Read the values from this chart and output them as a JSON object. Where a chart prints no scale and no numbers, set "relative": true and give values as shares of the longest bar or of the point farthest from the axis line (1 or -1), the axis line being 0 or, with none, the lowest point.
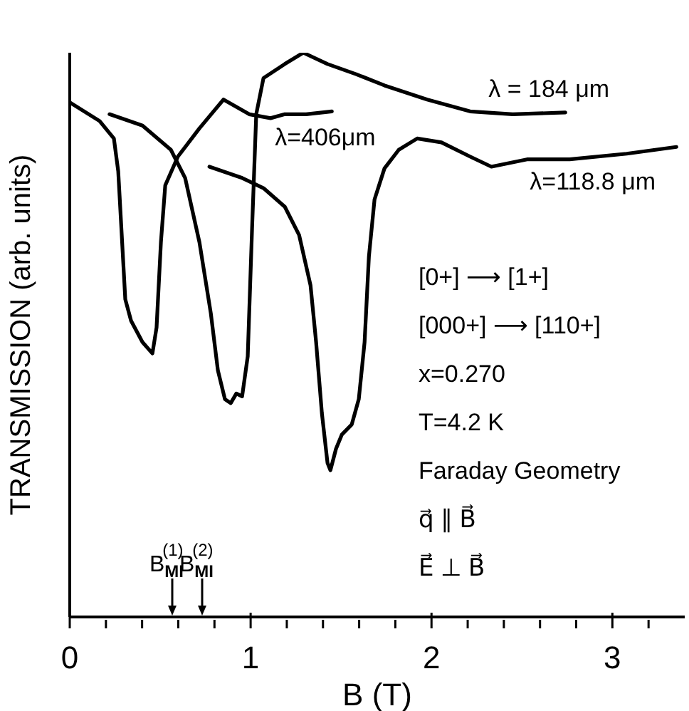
{
  "chart_data": {
    "type": "line",
    "relative": true,
    "xlabel": "B (T)",
    "ylabel": "TRANSMISSION  (arb. units)",
    "xlim": [
      0,
      3.4
    ],
    "xticks": [
      0,
      {
        "value": 0.2,
        "label": null
      },
      {
        "value": 0.4,
        "label": null
      },
      {
        "value": 0.6,
        "label": null
      },
      {
        "value": 0.8,
        "label": null
      },
      1,
      {
        "value": 1.2,
        "label": null
      },
      {
        "value": 1.4,
        "label": null
      },
      {
        "value": 1.6,
        "label": null
      },
      {
        "value": 1.8,
        "label": null
      },
      2,
      {
        "value": 2.2,
        "label": null
      },
      {
        "value": 2.4,
        "label": null
      },
      {
        "value": 2.6,
        "label": null
      },
      {
        "value": 2.8,
        "label": null
      },
      3,
      {
        "value": 3.2,
        "label": null
      }
    ],
    "grid": false,
    "legend": false,
    "marker": "none",
    "line_style": "solid",
    "series": [
      {
        "name": "λ=406μm",
        "color": "#000000",
        "x": [
          0,
          0.165,
          0.244,
          0.268,
          0.307,
          0.339,
          0.402,
          0.457,
          0.48,
          0.504,
          0.528,
          0.598,
          0.717,
          0.795,
          0.85,
          0.992,
          1.11,
          1.189,
          1.307,
          1.449
        ],
        "values": [
          0.912,
          0.879,
          0.848,
          0.79,
          0.563,
          0.525,
          0.487,
          0.467,
          0.513,
          0.664,
          0.765,
          0.816,
          0.866,
          0.896,
          0.917,
          0.891,
          0.884,
          0.891,
          0.891,
          0.896
        ]
      },
      {
        "name": "λ = 184  μm",
        "color": "#000000",
        "x": [
          0.22,
          0.402,
          0.559,
          0.638,
          0.717,
          0.78,
          0.819,
          0.858,
          0.89,
          0.921,
          0.953,
          0.984,
          1.008,
          1.031,
          1.071,
          1.189,
          1.291,
          1.425,
          1.583,
          1.74,
          1.976,
          2.213,
          2.449,
          2.74
        ],
        "values": [
          0.891,
          0.871,
          0.828,
          0.778,
          0.664,
          0.538,
          0.437,
          0.386,
          0.379,
          0.396,
          0.391,
          0.462,
          0.689,
          0.891,
          0.955,
          0.98,
          1,
          0.98,
          0.962,
          0.942,
          0.917,
          0.896,
          0.891,
          0.894
        ]
      },
      {
        "name": "λ=118.8 μm",
        "color": "#000000",
        "x": [
          0.772,
          0.953,
          1.071,
          1.189,
          1.268,
          1.331,
          1.362,
          1.394,
          1.425,
          1.441,
          1.472,
          1.504,
          1.559,
          1.598,
          1.63,
          1.654,
          1.685,
          1.74,
          1.819,
          1.921,
          2.055,
          2.213,
          2.331,
          2.528,
          2.764,
          3.079,
          3.354
        ],
        "values": [
          0.798,
          0.778,
          0.76,
          0.727,
          0.677,
          0.588,
          0.487,
          0.361,
          0.273,
          0.26,
          0.298,
          0.323,
          0.341,
          0.386,
          0.487,
          0.639,
          0.74,
          0.795,
          0.828,
          0.848,
          0.841,
          0.816,
          0.798,
          0.811,
          0.811,
          0.821,
          0.833
        ]
      }
    ],
    "annotations": [
      "B$_{MI}$$^{(1)}$",
      "B$_{MI}$$^{(2)}$",
      "[0+] ⟶ [1+]",
      "[000+] ⟶ [110+]",
      "x=0.270",
      "T=4.2 K",
      "Faraday Geometry",
      "q⃗ ∥ B⃗",
      "E⃗ ⊥ B⃗"
    ]
  }
}
